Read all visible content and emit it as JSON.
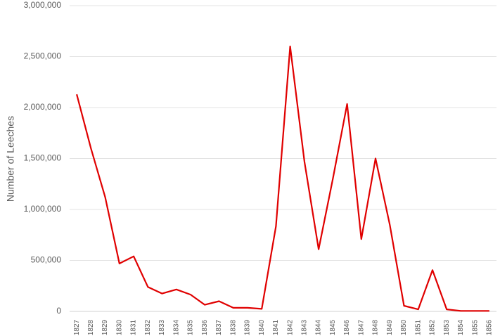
{
  "chart_data": {
    "type": "line",
    "y_label": "Number of Leeches",
    "categories": [
      "1827",
      "1828",
      "1829",
      "1830",
      "1831",
      "1832",
      "1833",
      "1834",
      "1835",
      "1836",
      "1837",
      "1838",
      "1839",
      "1840",
      "1841",
      "1842",
      "1843",
      "1844",
      "1845",
      "1846",
      "1847",
      "1848",
      "1849",
      "1850",
      "1851",
      "1852",
      "1853",
      "1854",
      "1855",
      "1856"
    ],
    "values": [
      2130000,
      1600000,
      1120000,
      470000,
      540000,
      240000,
      175000,
      215000,
      165000,
      65000,
      100000,
      35000,
      35000,
      25000,
      835000,
      2600000,
      1470000,
      610000,
      1300000,
      2035000,
      710000,
      1500000,
      850000,
      55000,
      20000,
      405000,
      20000,
      5000,
      5000,
      5000
    ],
    "color": "#e00000",
    "ylim": [
      0,
      3000000
    ],
    "yticks": [
      0,
      {
        "value": 500000,
        "label": "500,000"
      },
      {
        "value": 1000000,
        "label": "1,000,000"
      },
      {
        "value": 1500000,
        "label": "1,500,000"
      },
      {
        "value": 2000000,
        "label": "2,000,000"
      },
      {
        "value": 2500000,
        "label": "2,500,000"
      },
      {
        "value": 3000000,
        "label": "3,000,000"
      }
    ],
    "grid": true
  }
}
